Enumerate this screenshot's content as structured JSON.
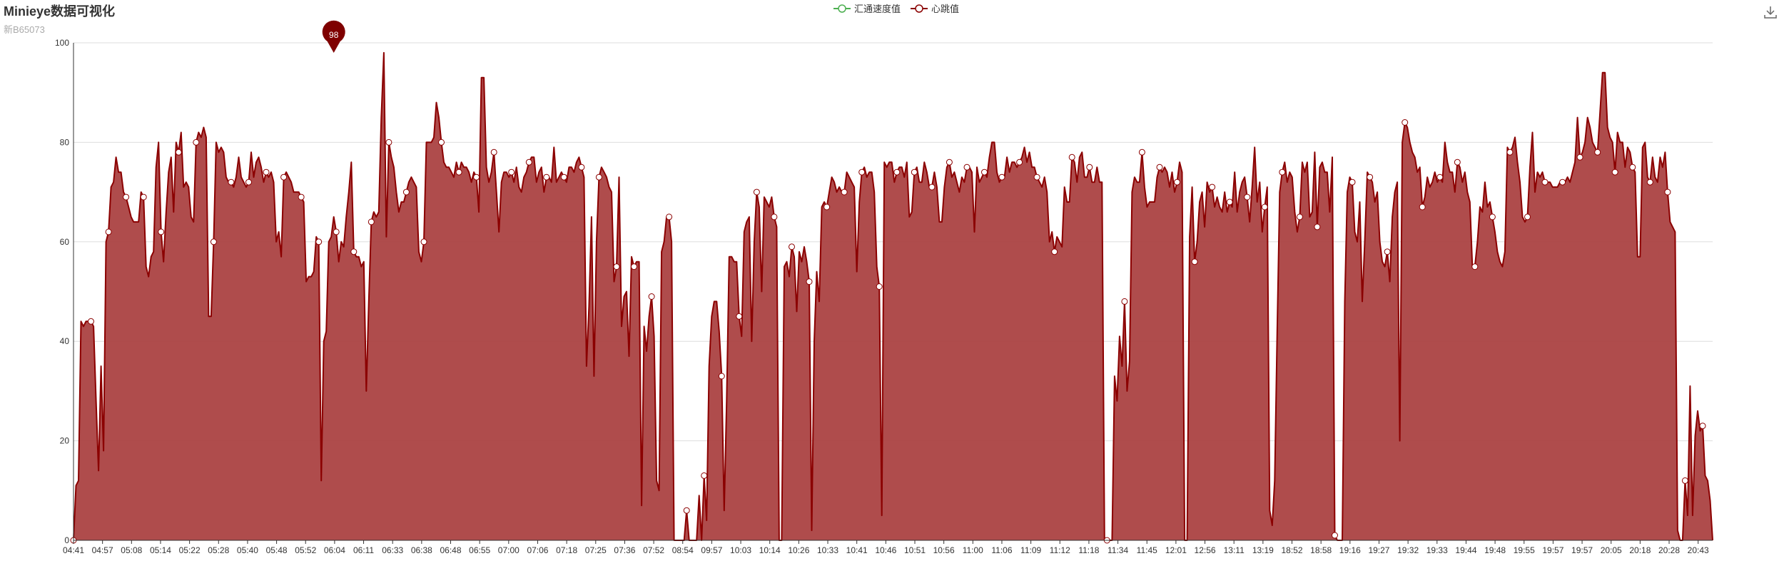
{
  "header": {
    "title": "Minieye数据可视化",
    "subtitle": "新B65073"
  },
  "legend": [
    {
      "name": "汇通速度值",
      "color": "#4caf50"
    },
    {
      "name": "心跳值",
      "color": "#8b0000"
    }
  ],
  "toolbox": {
    "icon": "download-icon"
  },
  "markpoint": {
    "label": "98"
  },
  "chart_data": {
    "type": "area",
    "xlabel": "",
    "ylabel": "",
    "ylim": [
      0,
      100
    ],
    "yticks": [
      0,
      20,
      40,
      60,
      80,
      100
    ],
    "grid": true,
    "legend_position": "top-center",
    "x_tick_labels": [
      "04:41",
      "04:57",
      "05:08",
      "05:14",
      "05:22",
      "05:28",
      "05:40",
      "05:48",
      "05:52",
      "06:04",
      "06:11",
      "06:33",
      "06:38",
      "06:48",
      "06:55",
      "07:00",
      "07:06",
      "07:18",
      "07:25",
      "07:36",
      "07:52",
      "08:54",
      "09:57",
      "10:03",
      "10:14",
      "10:26",
      "10:33",
      "10:41",
      "10:46",
      "10:51",
      "10:56",
      "11:00",
      "11:06",
      "11:09",
      "11:12",
      "11:18",
      "11:34",
      "11:45",
      "12:01",
      "12:56",
      "13:11",
      "13:19",
      "18:52",
      "18:58",
      "19:16",
      "19:27",
      "19:32",
      "19:33",
      "19:44",
      "19:48",
      "19:55",
      "19:57",
      "19:57",
      "20:05",
      "20:18",
      "20:28",
      "20:43"
    ],
    "series": [
      {
        "name": "汇通速度值",
        "color": "#4caf50",
        "values": []
      },
      {
        "name": "心跳值",
        "color": "#8b0000",
        "max_point": {
          "x_index": 104,
          "value": 98
        },
        "values": [
          0,
          11,
          12,
          44,
          43,
          44,
          44,
          44,
          43,
          28,
          14,
          35,
          18,
          60,
          62,
          71,
          72,
          77,
          74,
          74,
          70,
          69,
          67,
          65,
          64,
          64,
          64,
          70,
          69,
          55,
          53,
          57,
          58,
          75,
          80,
          62,
          56,
          66,
          74,
          77,
          66,
          80,
          78,
          82,
          71,
          72,
          71,
          65,
          64,
          80,
          82,
          81,
          83,
          81,
          45,
          45,
          60,
          80,
          78,
          79,
          78,
          73,
          72,
          72,
          71,
          73,
          77,
          73,
          72,
          71,
          72,
          78,
          73,
          76,
          77,
          75,
          72,
          74,
          73,
          74,
          72,
          60,
          62,
          57,
          73,
          74,
          73,
          72,
          70,
          70,
          70,
          69,
          68,
          52,
          53,
          53,
          54,
          61,
          60,
          12,
          40,
          42,
          60,
          61,
          65,
          62,
          56,
          60,
          59,
          65,
          70,
          76,
          58,
          57,
          57,
          55,
          56,
          30,
          48,
          64,
          66,
          65,
          66,
          85,
          98,
          61,
          80,
          77,
          75,
          70,
          66,
          68,
          68,
          70,
          72,
          73,
          72,
          71,
          58,
          56,
          60,
          80,
          80,
          80,
          81,
          88,
          85,
          80,
          76,
          75,
          75,
          74,
          73,
          76,
          74,
          76,
          75,
          75,
          74,
          72,
          74,
          73,
          66,
          93,
          93,
          75,
          72,
          74,
          78,
          70,
          62,
          72,
          74,
          74,
          73,
          74,
          72,
          75,
          71,
          70,
          73,
          74,
          76,
          77,
          77,
          72,
          74,
          75,
          70,
          73,
          73,
          72,
          79,
          72,
          73,
          74,
          73,
          72,
          75,
          75,
          74,
          76,
          77,
          75,
          73,
          35,
          47,
          65,
          33,
          60,
          73,
          75,
          74,
          73,
          71,
          70,
          52,
          55,
          73,
          43,
          49,
          50,
          37,
          57,
          55,
          56,
          56,
          7,
          43,
          38,
          45,
          49,
          41,
          12,
          10,
          58,
          60,
          65,
          65,
          60,
          0,
          0,
          0,
          0,
          0,
          6,
          0,
          0,
          0,
          0,
          9,
          0,
          13,
          4,
          35,
          45,
          48,
          48,
          42,
          33,
          6,
          28,
          57,
          57,
          56,
          56,
          45,
          41,
          62,
          64,
          65,
          40,
          60,
          70,
          67,
          50,
          69,
          68,
          67,
          69,
          65,
          63,
          0,
          0,
          55,
          56,
          53,
          59,
          57,
          46,
          58,
          56,
          59,
          56,
          52,
          2,
          40,
          54,
          48,
          67,
          68,
          67,
          70,
          73,
          72,
          70,
          71,
          70,
          70,
          74,
          73,
          72,
          71,
          54,
          68,
          74,
          75,
          73,
          74,
          74,
          70,
          55,
          51,
          5,
          76,
          75,
          76,
          76,
          72,
          74,
          75,
          75,
          73,
          76,
          65,
          66,
          74,
          75,
          72,
          72,
          76,
          74,
          71,
          71,
          74,
          71,
          64,
          64,
          71,
          75,
          76,
          73,
          74,
          72,
          70,
          73,
          72,
          75,
          75,
          74,
          62,
          75,
          72,
          73,
          74,
          73,
          77,
          80,
          80,
          74,
          72,
          73,
          73,
          77,
          74,
          76,
          76,
          75,
          76,
          77,
          79,
          76,
          78,
          75,
          75,
          73,
          72,
          71,
          73,
          70,
          60,
          62,
          58,
          61,
          60,
          59,
          71,
          68,
          68,
          77,
          76,
          72,
          77,
          78,
          73,
          73,
          75,
          72,
          72,
          75,
          72,
          72,
          0,
          0,
          0,
          0,
          33,
          28,
          41,
          35,
          48,
          30,
          36,
          70,
          73,
          72,
          72,
          78,
          71,
          67,
          68,
          68,
          68,
          73,
          75,
          74,
          75,
          74,
          71,
          74,
          70,
          72,
          76,
          74,
          0,
          0,
          61,
          71,
          56,
          60,
          68,
          70,
          63,
          72,
          70,
          71,
          67,
          69,
          67,
          66,
          70,
          66,
          68,
          67,
          74,
          66,
          70,
          72,
          73,
          69,
          64,
          71,
          79,
          68,
          72,
          62,
          67,
          71,
          6,
          3,
          12,
          42,
          70,
          74,
          76,
          72,
          74,
          73,
          66,
          62,
          65,
          76,
          74,
          76,
          65,
          66,
          78,
          63,
          75,
          76,
          74,
          74,
          66,
          77,
          1,
          0,
          0,
          0,
          48,
          70,
          73,
          72,
          62,
          60,
          68,
          48,
          60,
          74,
          73,
          72,
          68,
          70,
          60,
          56,
          55,
          58,
          52,
          65,
          70,
          72,
          20,
          80,
          84,
          83,
          80,
          78,
          77,
          74,
          75,
          67,
          69,
          73,
          71,
          72,
          74,
          72,
          73,
          72,
          80,
          76,
          74,
          74,
          70,
          76,
          75,
          72,
          74,
          70,
          68,
          55,
          55,
          60,
          67,
          66,
          72,
          67,
          68,
          65,
          62,
          58,
          56,
          55,
          58,
          79,
          78,
          79,
          81,
          76,
          72,
          65,
          64,
          65,
          75,
          82,
          70,
          74,
          73,
          74,
          72,
          72,
          72,
          71,
          71,
          71,
          72,
          72,
          72,
          73,
          72,
          74,
          76,
          85,
          77,
          78,
          80,
          85,
          83,
          80,
          79,
          78,
          86,
          94,
          94,
          83,
          81,
          80,
          74,
          82,
          80,
          80,
          75,
          79,
          78,
          75,
          74,
          57,
          57,
          79,
          80,
          73,
          72,
          77,
          73,
          72,
          77,
          75,
          78,
          70,
          64,
          63,
          62,
          2,
          0,
          0,
          12,
          5,
          31,
          5,
          21,
          26,
          22,
          23,
          13,
          12,
          8,
          0
        ]
      }
    ]
  }
}
